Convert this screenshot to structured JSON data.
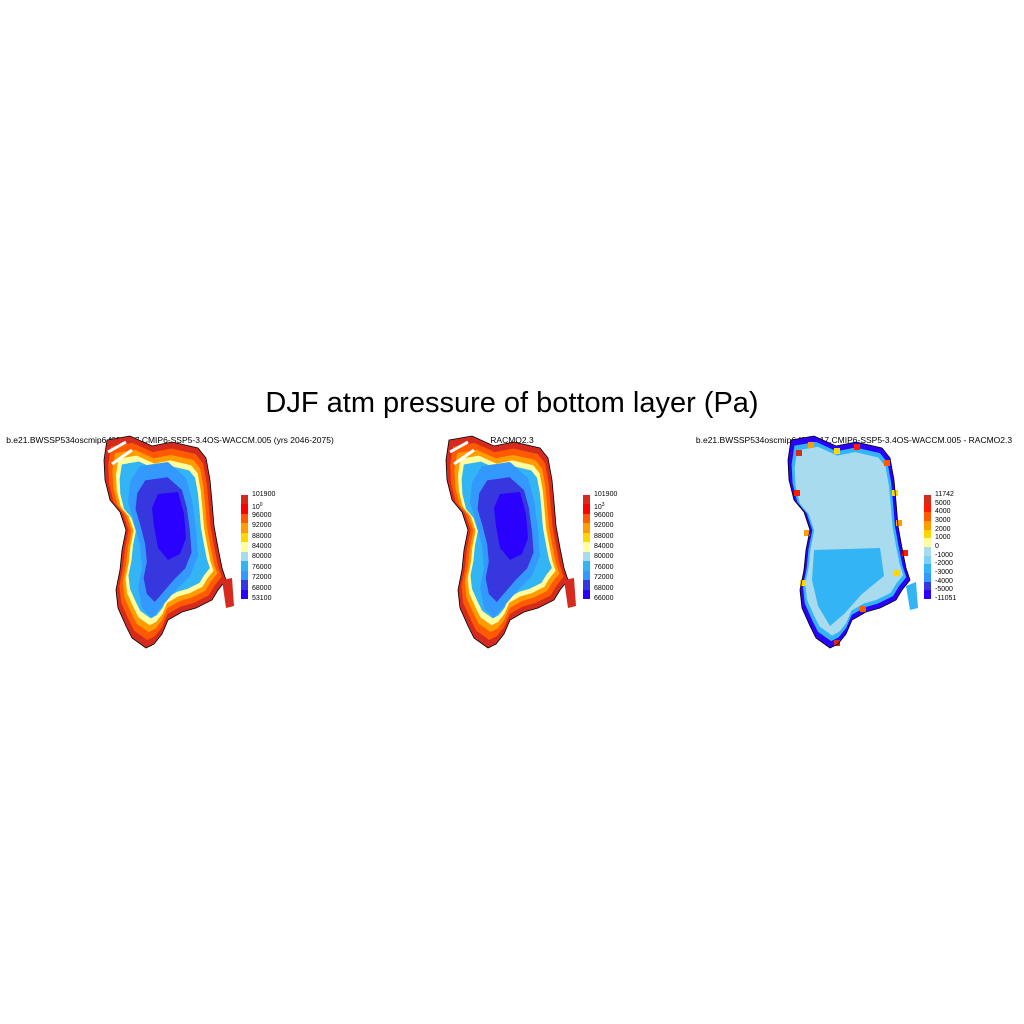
{
  "figure": {
    "title": "DJF atm pressure of bottom layer (Pa)"
  },
  "panels": [
    {
      "title": "b.e21.BWSSP534oscmip6.f09_g17.CMIP6-SSP5-3.4OS-WACCM.005 (yrs 2046-2075)",
      "colorbar": {
        "labels": [
          "101900",
          "10^0",
          "96000",
          "92000",
          "88000",
          "84000",
          "80000",
          "76000",
          "72000",
          "68000",
          "53100"
        ],
        "colors": [
          "#d52b1f",
          "#ff0000",
          "#ff5a00",
          "#ff9c00",
          "#ffd700",
          "#ffff9f",
          "#a9dbee",
          "#33b5f5",
          "#3399ff",
          "#3737e0",
          "#2a00ff"
        ]
      }
    },
    {
      "title": "RACMO2.3",
      "colorbar": {
        "labels": [
          "101900",
          "10^3",
          "96000",
          "92000",
          "88000",
          "84000",
          "80000",
          "76000",
          "72000",
          "68000",
          "66000"
        ],
        "colors": [
          "#d52b1f",
          "#ff0000",
          "#ff5a00",
          "#ff9c00",
          "#ffd700",
          "#ffff9f",
          "#a9dbee",
          "#33b5f5",
          "#3399ff",
          "#3737e0",
          "#2a00ff"
        ]
      }
    },
    {
      "title": "b.e21.BWSSP534oscmip6.f09_g17.CMIP6-SSP5-3.4OS-WACCM.005 - RACMO2.3",
      "colorbar": {
        "labels": [
          "11742",
          "5000",
          "4000",
          "3000",
          "2000",
          "1000",
          "0",
          "-1000",
          "-2000",
          "-3000",
          "-4000",
          "-5000",
          "-11051"
        ],
        "colors": [
          "#d52b1f",
          "#ff1a00",
          "#ff5a00",
          "#ff9c00",
          "#ffd700",
          "#ffff9f",
          "#a9dbee",
          "#7fd0f5",
          "#33b5f5",
          "#3399ff",
          "#3737e0",
          "#2a00ff"
        ]
      }
    }
  ]
}
